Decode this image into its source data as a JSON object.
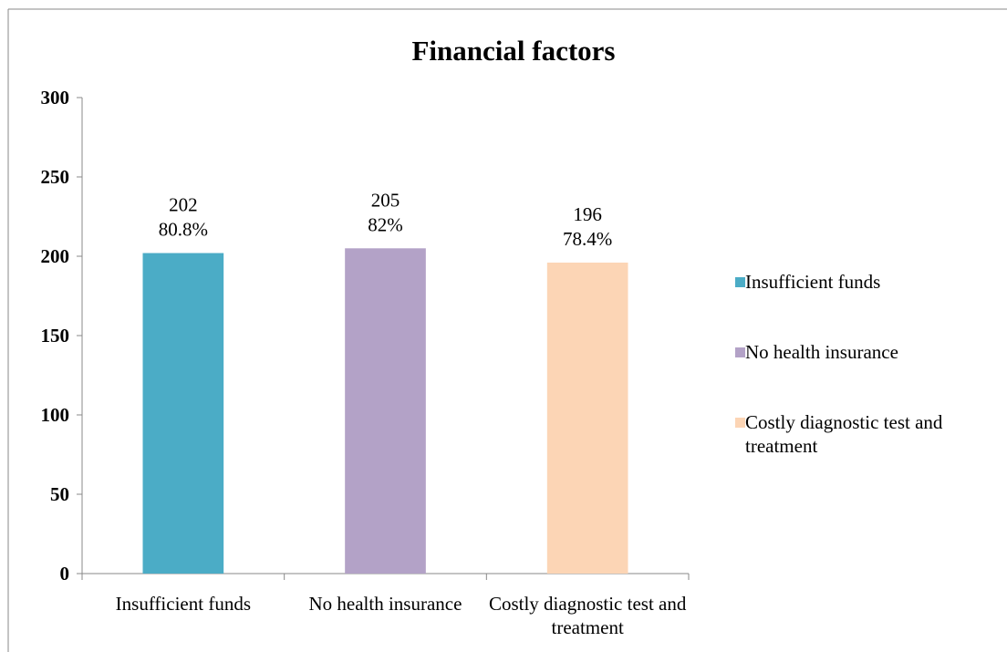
{
  "chart_data": {
    "type": "bar",
    "title": "Financial factors",
    "categories": [
      "Insufficient funds",
      "No health insurance",
      "Costly diagnostic test and treatment"
    ],
    "series": [
      {
        "name": "Insufficient funds",
        "color": "#4bacc6"
      },
      {
        "name": "No health insurance",
        "color": "#b3a2c7"
      },
      {
        "name": "Costly diagnostic test and treatment",
        "color": "#fcd5b5"
      }
    ],
    "values": [
      202,
      205,
      196
    ],
    "percent_labels": [
      "80.8%",
      "82%",
      "78.4%"
    ],
    "ylim": [
      0,
      300
    ],
    "yticks": [
      0,
      50,
      100,
      150,
      200,
      250,
      300
    ],
    "grid": false,
    "legend": "right"
  }
}
